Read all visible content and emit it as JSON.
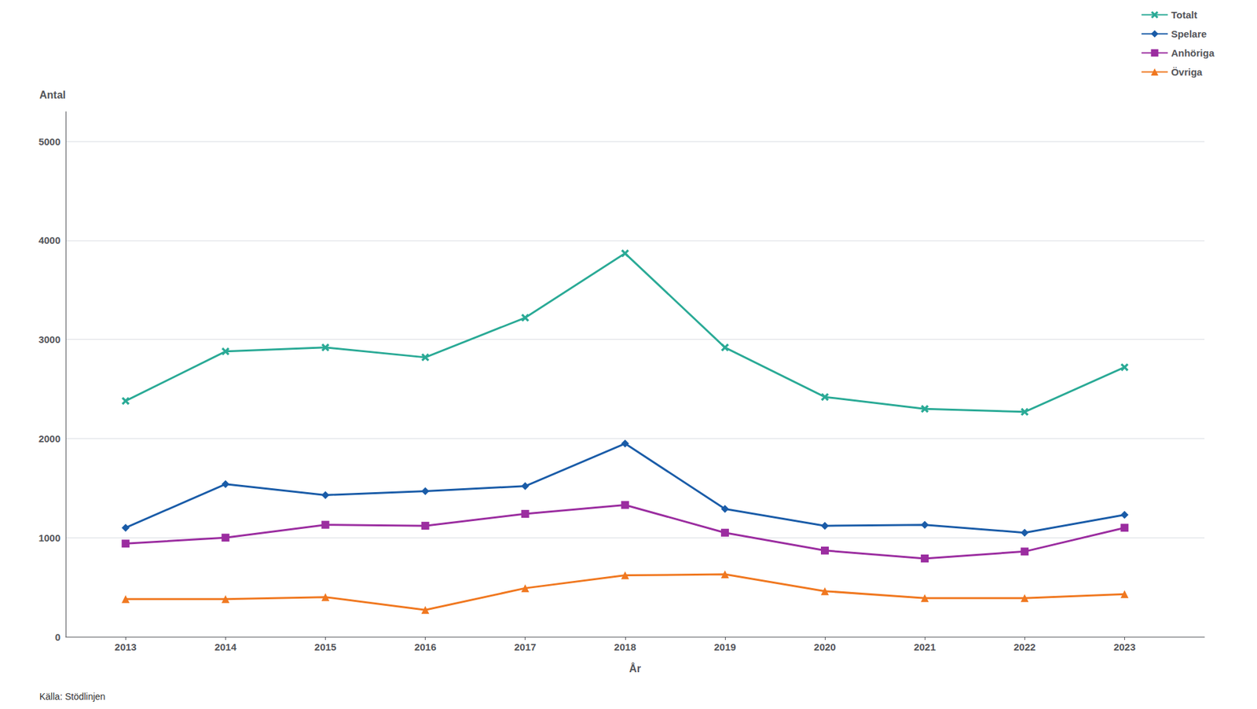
{
  "chart_data": {
    "type": "line",
    "x": [
      2013,
      2014,
      2015,
      2016,
      2017,
      2018,
      2019,
      2020,
      2021,
      2022,
      2023
    ],
    "xlabel": "År",
    "ylabel": "Antal",
    "xlim": [
      2012.4,
      2023.8
    ],
    "xticks": [
      2013,
      2014,
      2015,
      2016,
      2017,
      2018,
      2019,
      2020,
      2021,
      2022,
      2023
    ],
    "ylim": [
      0,
      5300
    ],
    "yticks": [
      0,
      1000,
      2000,
      3000,
      4000,
      5000
    ],
    "grid": true,
    "legend": "upper right",
    "annotations": [
      "Källa: Stödlinjen"
    ],
    "series": [
      {
        "name": "Totalt",
        "color": "#2aaa96",
        "marker": "x",
        "values": [
          2380,
          2880,
          2920,
          2820,
          3220,
          3870,
          2920,
          2420,
          2300,
          2270,
          2720
        ]
      },
      {
        "name": "Spelare",
        "color": "#1a5ca8",
        "marker": "diamond",
        "values": [
          1100,
          1540,
          1430,
          1470,
          1520,
          1950,
          1290,
          1120,
          1130,
          1050,
          1230
        ]
      },
      {
        "name": "Anhöriga",
        "color": "#9b2da0",
        "marker": "square",
        "values": [
          940,
          1000,
          1130,
          1120,
          1240,
          1330,
          1050,
          870,
          790,
          860,
          1100
        ]
      },
      {
        "name": "Övriga",
        "color": "#f07820",
        "marker": "triangle",
        "values": [
          380,
          380,
          400,
          270,
          490,
          620,
          630,
          460,
          390,
          390,
          430
        ]
      }
    ]
  }
}
